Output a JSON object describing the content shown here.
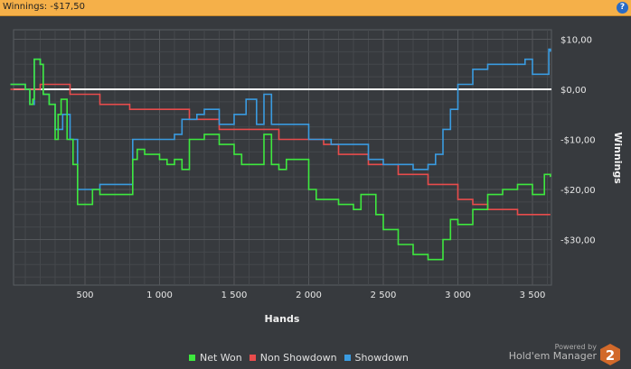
{
  "header": {
    "title": "Winnings: -$17,50",
    "help_icon": "help-icon"
  },
  "chart_data": {
    "type": "line",
    "xlabel": "Hands",
    "ylabel": "Winnings",
    "xlim": [
      -50,
      3630
    ],
    "ylim": [
      -39,
      12
    ],
    "x_ticks": [
      500,
      1000,
      1500,
      2000,
      2500,
      3000,
      3500
    ],
    "x_tick_labels": [
      "500",
      "1 000",
      "1 500",
      "2 000",
      "2 500",
      "3 000",
      "3 500"
    ],
    "y_ticks": [
      10,
      0,
      -10,
      -20,
      -30
    ],
    "y_tick_labels": [
      "$10,00",
      "$0,00",
      "-$10,00",
      "-$20,00",
      "-$30,00"
    ],
    "grid": true,
    "legend": "bottom",
    "y_axis_side": "right",
    "series": [
      {
        "name": "Net Won",
        "color": "#3ee83e",
        "points": [
          [
            0,
            1
          ],
          [
            100,
            0
          ],
          [
            130,
            -3
          ],
          [
            150,
            -2
          ],
          [
            160,
            6
          ],
          [
            200,
            5
          ],
          [
            220,
            -1
          ],
          [
            260,
            -3
          ],
          [
            300,
            -10
          ],
          [
            320,
            -5
          ],
          [
            340,
            -2
          ],
          [
            380,
            -10
          ],
          [
            420,
            -15
          ],
          [
            450,
            -23
          ],
          [
            500,
            -23
          ],
          [
            550,
            -20
          ],
          [
            600,
            -21
          ],
          [
            700,
            -21
          ],
          [
            800,
            -21
          ],
          [
            820,
            -14
          ],
          [
            850,
            -12
          ],
          [
            900,
            -13
          ],
          [
            1000,
            -14
          ],
          [
            1050,
            -15
          ],
          [
            1100,
            -14
          ],
          [
            1150,
            -16
          ],
          [
            1200,
            -10
          ],
          [
            1300,
            -9
          ],
          [
            1400,
            -11
          ],
          [
            1500,
            -13
          ],
          [
            1550,
            -15
          ],
          [
            1650,
            -15
          ],
          [
            1700,
            -9
          ],
          [
            1750,
            -15
          ],
          [
            1800,
            -16
          ],
          [
            1850,
            -14
          ],
          [
            1950,
            -14
          ],
          [
            2000,
            -20
          ],
          [
            2050,
            -22
          ],
          [
            2100,
            -22
          ],
          [
            2200,
            -23
          ],
          [
            2300,
            -24
          ],
          [
            2350,
            -21
          ],
          [
            2400,
            -21
          ],
          [
            2450,
            -25
          ],
          [
            2500,
            -28
          ],
          [
            2600,
            -31
          ],
          [
            2700,
            -33
          ],
          [
            2800,
            -34
          ],
          [
            2850,
            -34
          ],
          [
            2900,
            -30
          ],
          [
            2950,
            -26
          ],
          [
            3000,
            -27
          ],
          [
            3050,
            -27
          ],
          [
            3100,
            -24
          ],
          [
            3200,
            -21
          ],
          [
            3300,
            -20
          ],
          [
            3400,
            -19
          ],
          [
            3500,
            -21
          ],
          [
            3560,
            -21
          ],
          [
            3580,
            -17
          ],
          [
            3620,
            -17.5
          ]
        ]
      },
      {
        "name": "Non Showdown",
        "color": "#e84c4c",
        "points": [
          [
            0,
            0
          ],
          [
            200,
            1
          ],
          [
            400,
            -1
          ],
          [
            600,
            -3
          ],
          [
            800,
            -4
          ],
          [
            1000,
            -4
          ],
          [
            1200,
            -6
          ],
          [
            1400,
            -8
          ],
          [
            1600,
            -8
          ],
          [
            1800,
            -10
          ],
          [
            2000,
            -10
          ],
          [
            2100,
            -11
          ],
          [
            2200,
            -13
          ],
          [
            2400,
            -15
          ],
          [
            2600,
            -17
          ],
          [
            2800,
            -19
          ],
          [
            3000,
            -22
          ],
          [
            3100,
            -23
          ],
          [
            3200,
            -24
          ],
          [
            3400,
            -25
          ],
          [
            3620,
            -25
          ]
        ]
      },
      {
        "name": "Showdown",
        "color": "#3a9be0",
        "points": [
          [
            0,
            1
          ],
          [
            100,
            0
          ],
          [
            130,
            -3
          ],
          [
            160,
            6
          ],
          [
            200,
            5
          ],
          [
            220,
            -1
          ],
          [
            260,
            -3
          ],
          [
            300,
            -8
          ],
          [
            350,
            -5
          ],
          [
            400,
            -10
          ],
          [
            450,
            -20
          ],
          [
            500,
            -20
          ],
          [
            600,
            -19
          ],
          [
            800,
            -19
          ],
          [
            820,
            -10
          ],
          [
            950,
            -10
          ],
          [
            1050,
            -10
          ],
          [
            1100,
            -9
          ],
          [
            1150,
            -6
          ],
          [
            1250,
            -5
          ],
          [
            1300,
            -4
          ],
          [
            1400,
            -7
          ],
          [
            1500,
            -5
          ],
          [
            1580,
            -2
          ],
          [
            1650,
            -7
          ],
          [
            1700,
            -1
          ],
          [
            1750,
            -7
          ],
          [
            1900,
            -7
          ],
          [
            2000,
            -10
          ],
          [
            2150,
            -11
          ],
          [
            2300,
            -11
          ],
          [
            2400,
            -14
          ],
          [
            2500,
            -15
          ],
          [
            2700,
            -16
          ],
          [
            2800,
            -15
          ],
          [
            2850,
            -13
          ],
          [
            2900,
            -8
          ],
          [
            2950,
            -4
          ],
          [
            3000,
            1
          ],
          [
            3100,
            4
          ],
          [
            3200,
            5
          ],
          [
            3300,
            5
          ],
          [
            3450,
            6
          ],
          [
            3500,
            3
          ],
          [
            3600,
            3
          ],
          [
            3610,
            8
          ],
          [
            3620,
            7.5
          ]
        ]
      }
    ]
  },
  "footer": {
    "powered_by": "Powered by",
    "brand": "Hold'em Manager",
    "logo_text": "2"
  }
}
